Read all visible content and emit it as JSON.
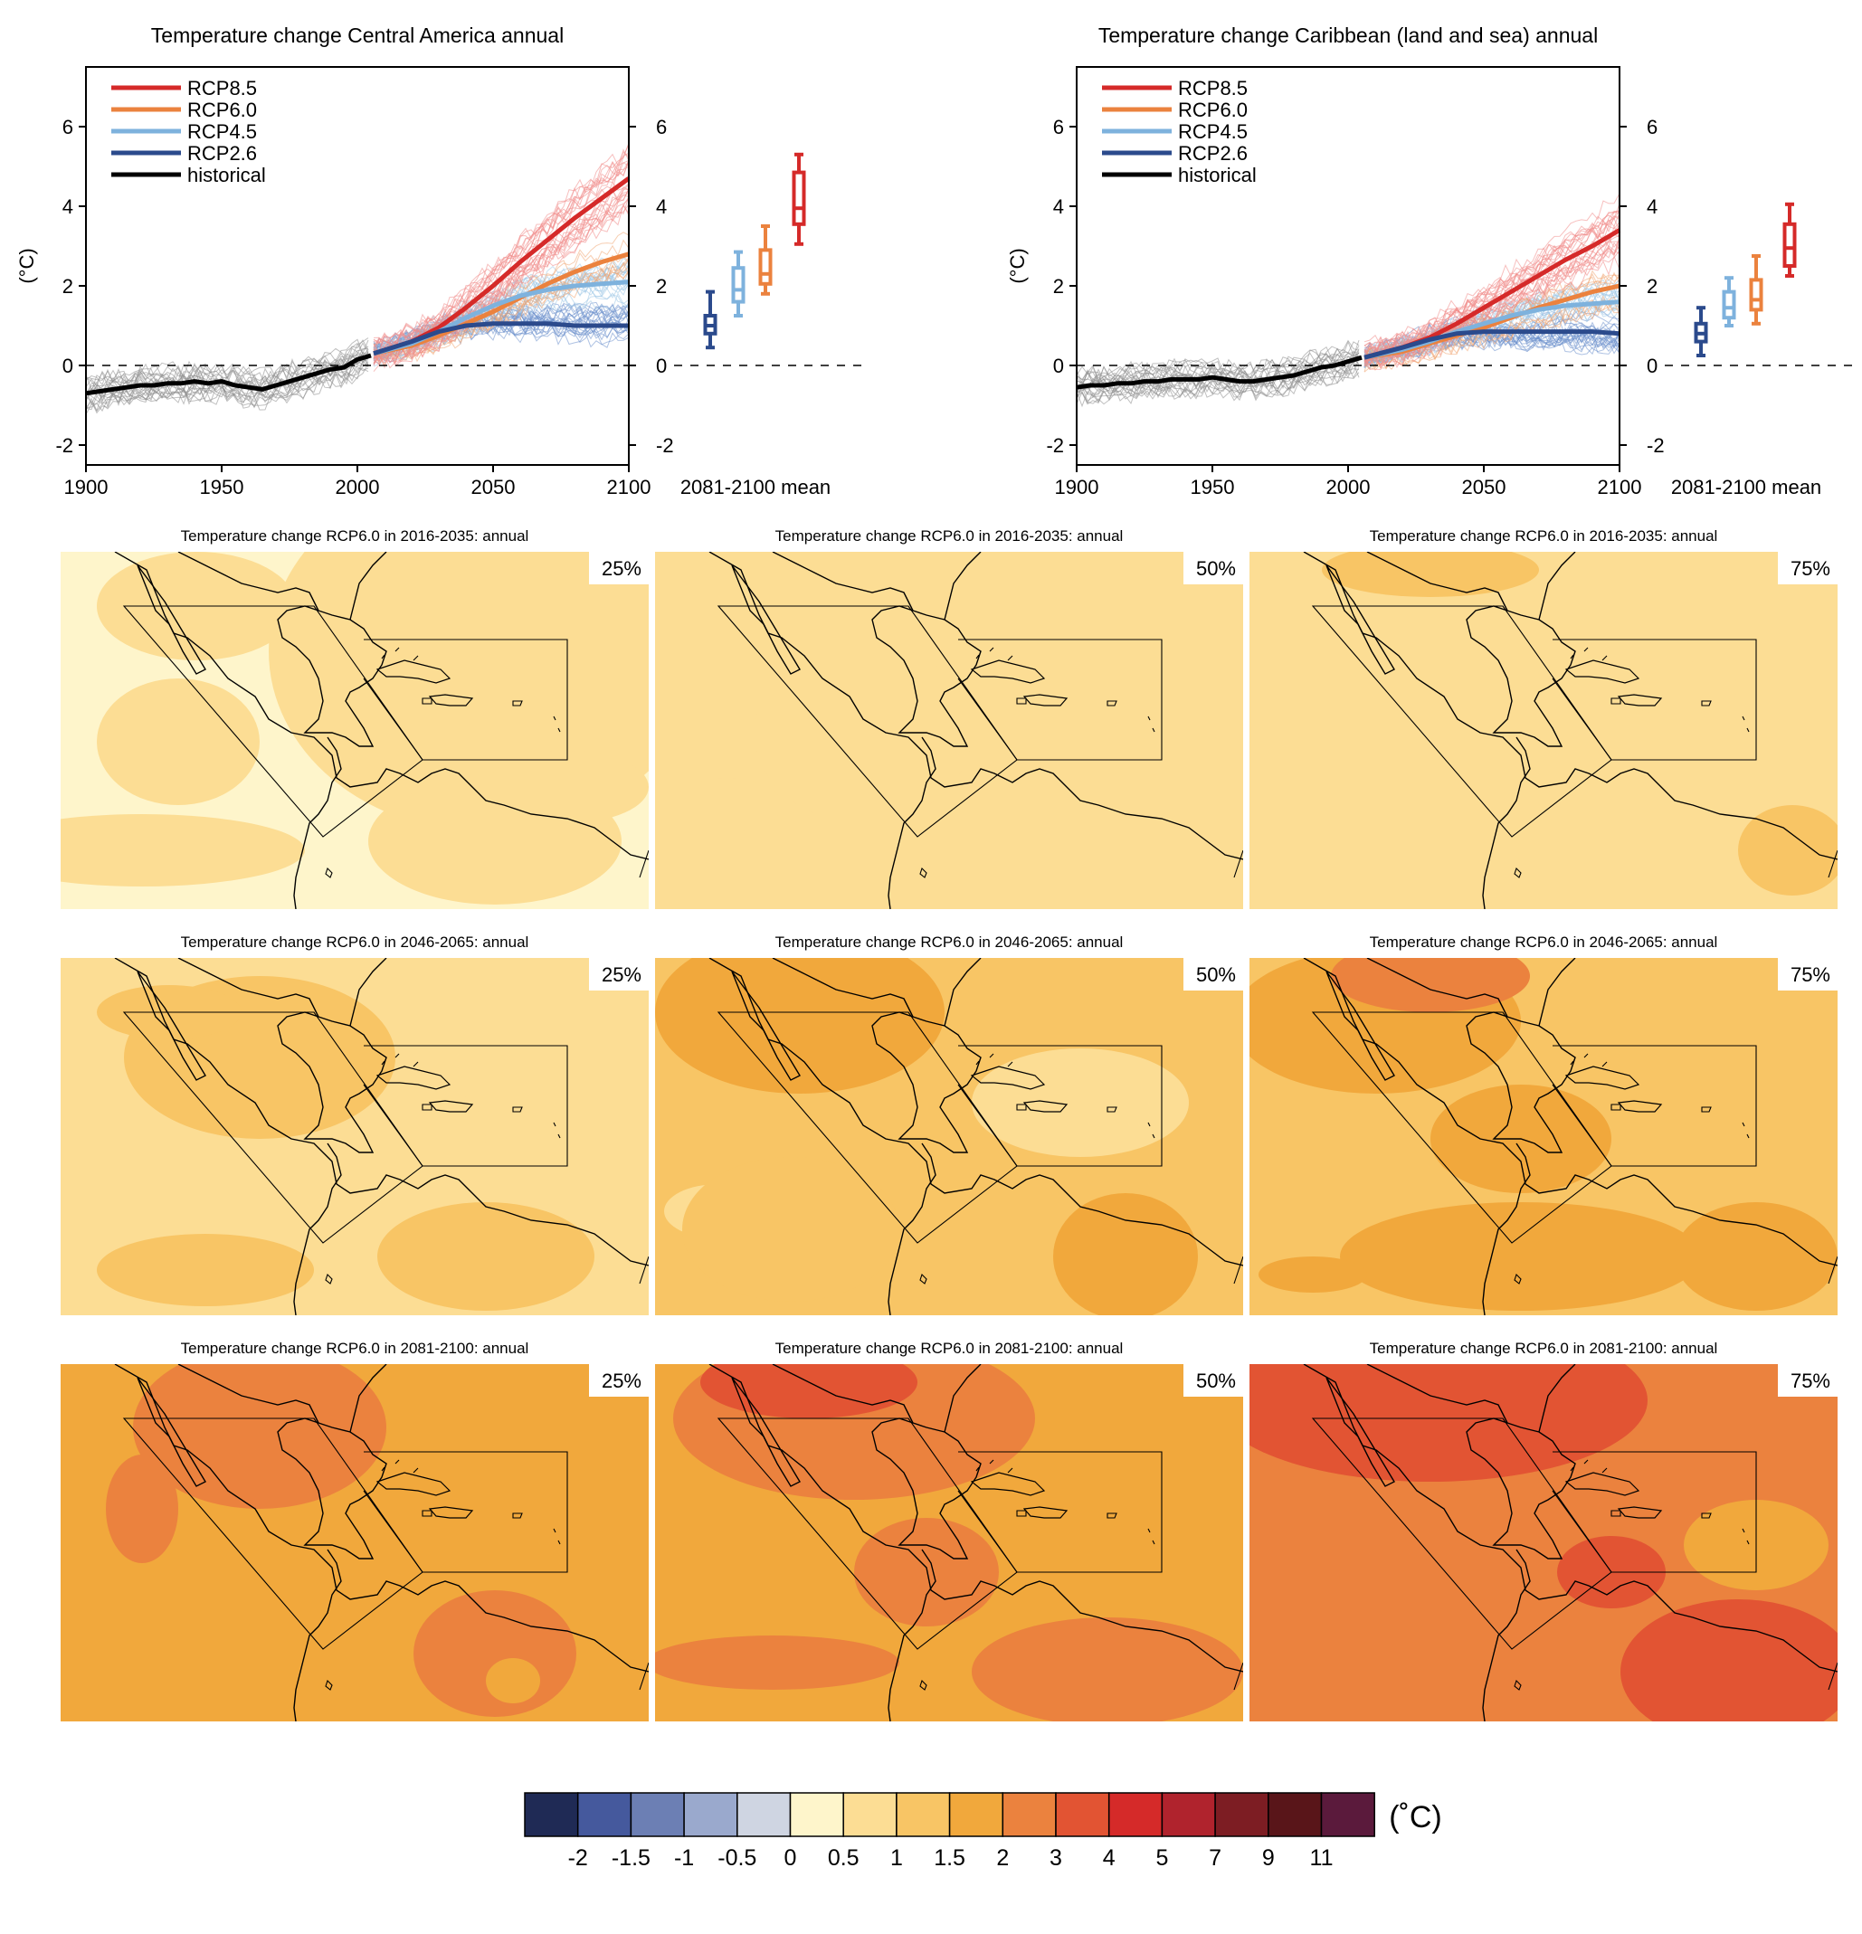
{
  "timeseries": [
    {
      "title": "Temperature change Central America annual",
      "ylabel": "(°C)",
      "yticks": [
        -2,
        0,
        2,
        4,
        6
      ],
      "xticks": [
        1900,
        1950,
        2000,
        2050,
        2100
      ],
      "box_label": "2081-2100 mean",
      "legend": [
        "RCP8.5",
        "RCP6.0",
        "RCP4.5",
        "RCP2.6",
        "historical"
      ]
    },
    {
      "title": "Temperature change Caribbean (land and sea) annual",
      "ylabel": "(°C)",
      "yticks": [
        -2,
        0,
        2,
        4,
        6
      ],
      "xticks": [
        1900,
        1950,
        2000,
        2050,
        2100
      ],
      "box_label": "2081-2100 mean",
      "legend": [
        "RCP8.5",
        "RCP6.0",
        "RCP4.5",
        "RCP2.6",
        "historical"
      ]
    }
  ],
  "maps": {
    "rows": [
      {
        "title": "Temperature change RCP6.0 in 2016-2035: annual",
        "percentiles": [
          "25%",
          "50%",
          "75%"
        ]
      },
      {
        "title": "Temperature change RCP6.0 in 2046-2065: annual",
        "percentiles": [
          "25%",
          "50%",
          "75%"
        ]
      },
      {
        "title": "Temperature change RCP6.0 in 2081-2100: annual",
        "percentiles": [
          "25%",
          "50%",
          "75%"
        ]
      }
    ]
  },
  "colorbar": {
    "unit": "(˚C)",
    "labels": [
      "-2",
      "-1.5",
      "-1",
      "-0.5",
      "0",
      "0.5",
      "1",
      "1.5",
      "2",
      "3",
      "4",
      "5",
      "7",
      "9",
      "11"
    ],
    "colors": [
      "#1f2a55",
      "#45599d",
      "#6c7fb4",
      "#9aa9cd",
      "#cfd5e2",
      "#fef5cb",
      "#fcdd94",
      "#f8c565",
      "#f1a83c",
      "#eb823e",
      "#e25433",
      "#d52a29",
      "#b0232d",
      "#7d1d23",
      "#591519",
      "#5b1a3c"
    ]
  },
  "chart_data": [
    {
      "type": "line",
      "title": "Temperature change Central America annual",
      "xlabel": "",
      "ylabel": "(°C)",
      "xlim": [
        1900,
        2100
      ],
      "ylim": [
        -2.5,
        7.5
      ],
      "series": [
        {
          "name": "historical",
          "color": "#000000",
          "x": [
            1900,
            1905,
            1910,
            1915,
            1920,
            1925,
            1930,
            1935,
            1940,
            1945,
            1950,
            1955,
            1960,
            1965,
            1970,
            1975,
            1980,
            1985,
            1990,
            1995,
            2000,
            2005
          ],
          "y": [
            -0.7,
            -0.65,
            -0.6,
            -0.55,
            -0.5,
            -0.5,
            -0.45,
            -0.45,
            -0.4,
            -0.45,
            -0.4,
            -0.5,
            -0.55,
            -0.6,
            -0.5,
            -0.4,
            -0.3,
            -0.2,
            -0.1,
            -0.05,
            0.15,
            0.25
          ]
        },
        {
          "name": "RCP8.5",
          "color": "#d52a29",
          "x": [
            2006,
            2020,
            2030,
            2040,
            2050,
            2060,
            2070,
            2080,
            2090,
            2100
          ],
          "y": [
            0.3,
            0.6,
            0.95,
            1.45,
            2.0,
            2.6,
            3.15,
            3.7,
            4.2,
            4.7
          ]
        },
        {
          "name": "RCP6.0",
          "color": "#eb823e",
          "x": [
            2006,
            2020,
            2030,
            2040,
            2050,
            2060,
            2070,
            2080,
            2090,
            2100
          ],
          "y": [
            0.3,
            0.5,
            0.75,
            1.05,
            1.35,
            1.7,
            2.05,
            2.35,
            2.6,
            2.8
          ]
        },
        {
          "name": "RCP4.5",
          "color": "#7eb2dd",
          "x": [
            2006,
            2020,
            2030,
            2040,
            2050,
            2060,
            2070,
            2080,
            2090,
            2100
          ],
          "y": [
            0.3,
            0.55,
            0.85,
            1.2,
            1.5,
            1.75,
            1.9,
            2.0,
            2.05,
            2.1
          ]
        },
        {
          "name": "RCP2.6",
          "color": "#2b4a8c",
          "x": [
            2006,
            2020,
            2030,
            2040,
            2050,
            2060,
            2070,
            2080,
            2090,
            2100
          ],
          "y": [
            0.3,
            0.6,
            0.85,
            1.0,
            1.05,
            1.05,
            1.05,
            1.0,
            1.0,
            1.0
          ]
        }
      ],
      "boxes_2081_2100": [
        {
          "name": "RCP2.6",
          "min": 0.45,
          "q1": 0.8,
          "median": 1.0,
          "q3": 1.25,
          "max": 1.85
        },
        {
          "name": "RCP4.5",
          "min": 1.25,
          "q1": 1.6,
          "median": 1.9,
          "q3": 2.45,
          "max": 2.85
        },
        {
          "name": "RCP6.0",
          "min": 1.8,
          "q1": 2.05,
          "median": 2.3,
          "q3": 2.9,
          "max": 3.5
        },
        {
          "name": "RCP8.5",
          "min": 3.05,
          "q1": 3.55,
          "median": 3.95,
          "q3": 4.85,
          "max": 5.3
        }
      ]
    },
    {
      "type": "line",
      "title": "Temperature change Caribbean (land and sea) annual",
      "xlabel": "",
      "ylabel": "(°C)",
      "xlim": [
        1900,
        2100
      ],
      "ylim": [
        -2.5,
        7.5
      ],
      "series": [
        {
          "name": "historical",
          "color": "#000000",
          "x": [
            1900,
            1905,
            1910,
            1915,
            1920,
            1925,
            1930,
            1935,
            1940,
            1945,
            1950,
            1955,
            1960,
            1965,
            1970,
            1975,
            1980,
            1985,
            1990,
            1995,
            2000,
            2005
          ],
          "y": [
            -0.55,
            -0.5,
            -0.5,
            -0.45,
            -0.45,
            -0.4,
            -0.4,
            -0.35,
            -0.35,
            -0.35,
            -0.3,
            -0.35,
            -0.4,
            -0.4,
            -0.35,
            -0.3,
            -0.25,
            -0.15,
            -0.05,
            0.0,
            0.1,
            0.2
          ]
        },
        {
          "name": "RCP8.5",
          "color": "#d52a29",
          "x": [
            2006,
            2020,
            2030,
            2040,
            2050,
            2060,
            2070,
            2080,
            2090,
            2100
          ],
          "y": [
            0.2,
            0.45,
            0.7,
            1.05,
            1.45,
            1.85,
            2.25,
            2.65,
            3.0,
            3.4
          ]
        },
        {
          "name": "RCP6.0",
          "color": "#eb823e",
          "x": [
            2006,
            2020,
            2030,
            2040,
            2050,
            2060,
            2070,
            2080,
            2090,
            2100
          ],
          "y": [
            0.2,
            0.35,
            0.55,
            0.75,
            0.95,
            1.2,
            1.45,
            1.65,
            1.85,
            2.0
          ]
        },
        {
          "name": "RCP4.5",
          "color": "#7eb2dd",
          "x": [
            2006,
            2020,
            2030,
            2040,
            2050,
            2060,
            2070,
            2080,
            2090,
            2100
          ],
          "y": [
            0.2,
            0.4,
            0.6,
            0.85,
            1.05,
            1.25,
            1.4,
            1.5,
            1.55,
            1.6
          ]
        },
        {
          "name": "RCP2.6",
          "color": "#2b4a8c",
          "x": [
            2006,
            2020,
            2030,
            2040,
            2050,
            2060,
            2070,
            2080,
            2090,
            2100
          ],
          "y": [
            0.2,
            0.45,
            0.65,
            0.8,
            0.85,
            0.85,
            0.85,
            0.85,
            0.85,
            0.8
          ]
        }
      ],
      "boxes_2081_2100": [
        {
          "name": "RCP2.6",
          "min": 0.25,
          "q1": 0.6,
          "median": 0.8,
          "q3": 1.05,
          "max": 1.45
        },
        {
          "name": "RCP4.5",
          "min": 1.0,
          "q1": 1.2,
          "median": 1.45,
          "q3": 1.85,
          "max": 2.2
        },
        {
          "name": "RCP6.0",
          "min": 1.05,
          "q1": 1.4,
          "median": 1.65,
          "q3": 2.15,
          "max": 2.75
        },
        {
          "name": "RCP8.5",
          "min": 2.25,
          "q1": 2.5,
          "median": 2.95,
          "q3": 3.55,
          "max": 4.05
        }
      ]
    }
  ]
}
